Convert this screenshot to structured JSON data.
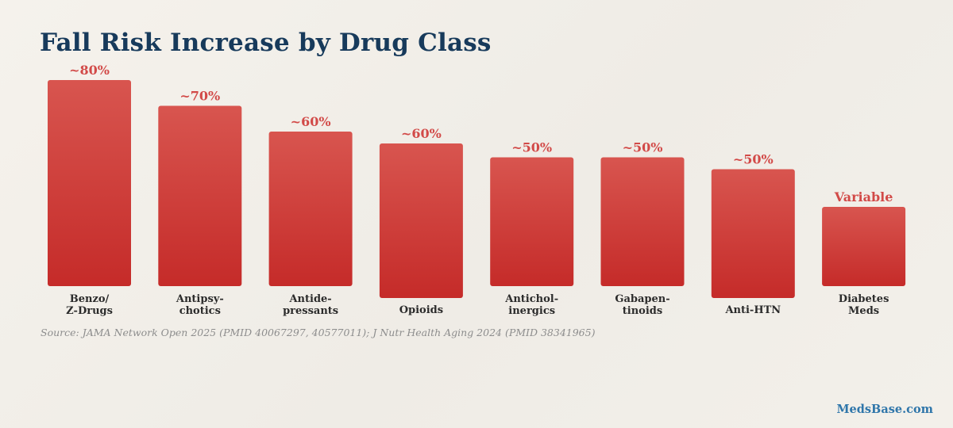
{
  "title": "Fall Risk Increase by Drug Class",
  "source": "Source: JAMA Network Open 2025 (PMID 40067297, 40577011); J Nutr Health Aging 2024 (PMID 38341965)",
  "brand": "MedsBase.com",
  "colors": {
    "bar_top": "#d8554f",
    "bar_bottom": "#c52b29",
    "value_text": "#d24a48",
    "title": "#173a5b",
    "brand": "#2f76aa"
  },
  "chart_data": {
    "type": "bar",
    "title": "Fall Risk Increase by Drug Class",
    "categories": [
      [
        "Benzo/",
        "Z-Drugs"
      ],
      [
        "Antipsy-",
        "chotics"
      ],
      [
        "Antide-",
        "pressants"
      ],
      [
        "Opioids"
      ],
      [
        "Antichol-",
        "inergics"
      ],
      [
        "Gabapen-",
        "tinoids"
      ],
      [
        "Anti-HTN"
      ],
      [
        "Diabetes",
        "Meds"
      ]
    ],
    "values": [
      80,
      70,
      60,
      60,
      50,
      50,
      50,
      null
    ],
    "data_labels": [
      "~80%",
      "~70%",
      "~60%",
      "~60%",
      "~50%",
      "~50%",
      "~50%",
      "Variable"
    ],
    "xlabel": "",
    "ylabel": "",
    "grid": false,
    "legend": "none"
  }
}
